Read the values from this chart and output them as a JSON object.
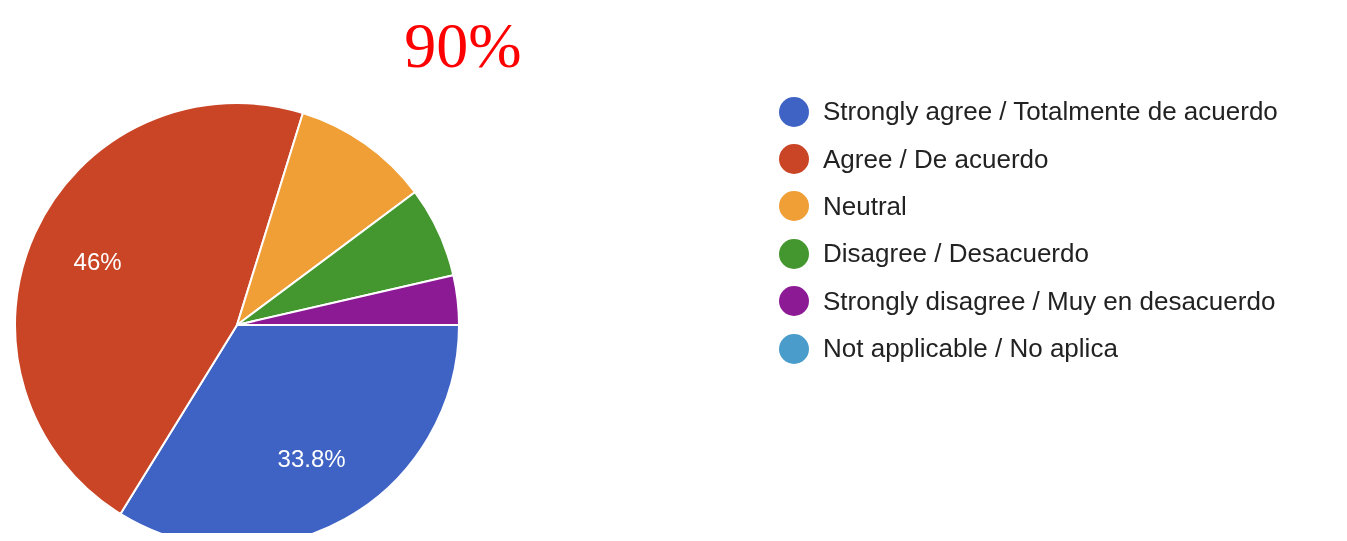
{
  "chart_data": {
    "type": "pie",
    "title": "90%",
    "categories": [
      "Strongly agree / Totalmente de acuerdo",
      "Agree / De acuerdo",
      "Neutral",
      "Disagree / Desacuerdo",
      "Strongly disagree / Muy en desacuerdo",
      "Not applicable / No aplica"
    ],
    "values": [
      33.8,
      46,
      10,
      6.6,
      3.6,
      0
    ],
    "colors": [
      "#3f63c4",
      "#c94526",
      "#f09e36",
      "#44962e",
      "#8c1a95",
      "#4a9ccb"
    ],
    "value_labels": [
      "33.8%",
      "46%",
      null,
      null,
      null,
      null
    ],
    "legend": "right"
  }
}
